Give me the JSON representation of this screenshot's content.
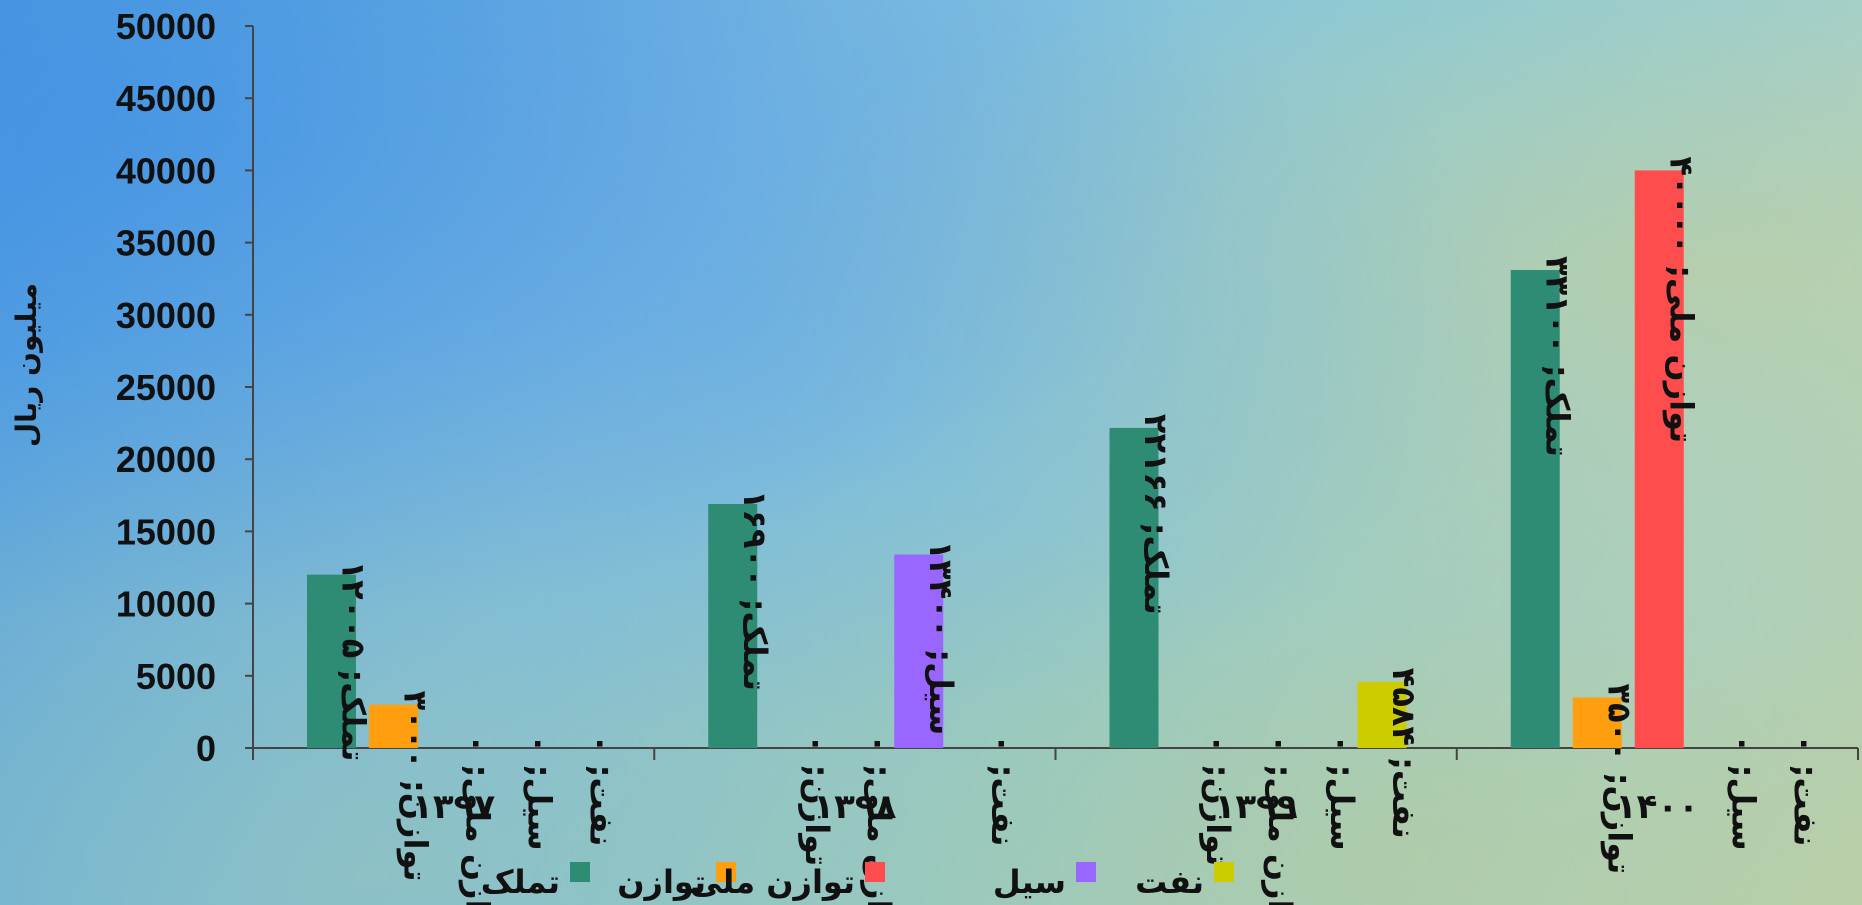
{
  "chart_data": {
    "type": "bar",
    "ylabel": "میلیون ریال",
    "ylim": [
      0,
      50000
    ],
    "yticks": [
      0,
      5000,
      10000,
      15000,
      20000,
      25000,
      30000,
      35000,
      40000,
      45000,
      50000
    ],
    "categories": [
      "۱۳۹۷",
      "۱۳۹۸",
      "۱۳۹۹",
      "۱۴۰۰"
    ],
    "series": [
      {
        "name": "تملک",
        "color": "#2e8b74",
        "values": [
          12005,
          16900,
          22166,
          33100
        ]
      },
      {
        "name": "توازن",
        "color": "#ff9f0f",
        "values": [
          3000,
          0,
          0,
          3500
        ]
      },
      {
        "name": "توازن ملی",
        "color": "#ff4d4d",
        "values": [
          0,
          0,
          0,
          40000
        ]
      },
      {
        "name": "سیل",
        "color": "#9966ff",
        "values": [
          0,
          13400,
          0,
          0
        ]
      },
      {
        "name": "نفت",
        "color": "#cccc00",
        "values": [
          0,
          0,
          4584,
          0
        ]
      }
    ],
    "data_labels": [
      [
        "تملک; ۱۲۰۰۵",
        "توازن; ۳۰۰۰",
        "توازن ملی; ۰",
        "سیل; ۰",
        "نفت; ۰"
      ],
      [
        "تملک; ۱۶۹۰۰",
        "توازن; ۰",
        "توازن ملی; ۰",
        "سیل; ۱۳۴۰۰",
        "نفت; ۰"
      ],
      [
        "تملک; ۲۲۱۶۶",
        "توازن; ۰",
        "توازن ملی; ۰",
        "سیل; ۰",
        "نفت; ۴۵۸۴"
      ],
      [
        "تملک; ۳۳۱۰۰",
        "توازن; ۳۵۰۰",
        "توازن ملی; ۴۰۰۰۰",
        "سیل; ۰",
        "نفت; ۰"
      ]
    ],
    "legend": {
      "position": "bottom"
    },
    "grid": false
  }
}
